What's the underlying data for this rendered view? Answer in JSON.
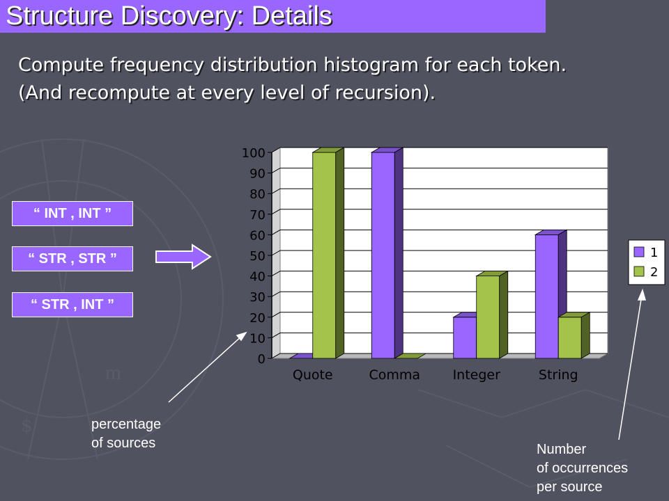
{
  "slide": {
    "title": "Structure Discovery: Details",
    "subtitle_lines": [
      "Compute frequency distribution histogram for each token.",
      "(And recompute at every level of recursion)."
    ],
    "token_boxes": [
      "“ INT , INT ”",
      "“ STR , STR ”",
      "“ STR , INT ”"
    ],
    "note_percentage": [
      "percentage",
      "of sources"
    ],
    "note_number": [
      "Number",
      "of occurrences",
      "per source"
    ],
    "colors": {
      "background": "#51525f",
      "accent": "#9966ff",
      "series1": "#9966ff",
      "series2": "#a4c34a"
    }
  },
  "chart_data": {
    "type": "bar",
    "categories": [
      "Quote",
      "Comma",
      "Integer",
      "String"
    ],
    "series": [
      {
        "name": "1",
        "values": [
          0,
          100,
          20,
          60
        ],
        "color": "#9966ff"
      },
      {
        "name": "2",
        "values": [
          100,
          0,
          40,
          20
        ],
        "color": "#a4c34a"
      }
    ],
    "ylim": [
      0,
      100
    ],
    "yticks": [
      0,
      10,
      20,
      30,
      40,
      50,
      60,
      70,
      80,
      90,
      100
    ],
    "xlabel": "",
    "ylabel": "",
    "grid": true,
    "style": "3d",
    "legend": "right"
  }
}
